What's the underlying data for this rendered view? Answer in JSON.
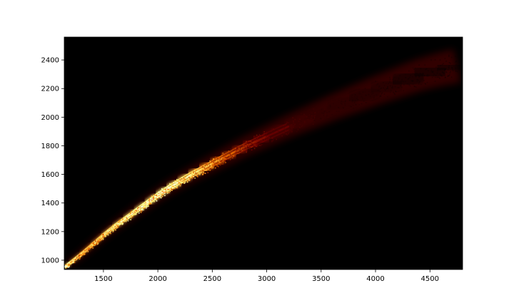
{
  "chart_data": {
    "type": "heatmap",
    "title": "",
    "xlabel": "",
    "ylabel": "",
    "xlim": [
      1140,
      4800
    ],
    "ylim": [
      935,
      2560
    ],
    "x_ticks": [
      1500,
      2000,
      2500,
      3000,
      3500,
      4000,
      4500
    ],
    "y_ticks": [
      1000,
      1200,
      1400,
      1600,
      1800,
      2000,
      2200,
      2400
    ],
    "grid": false,
    "colormap": "afmhot",
    "background_color": "#000000",
    "density_ridge": [
      {
        "x": 1150,
        "y": 955,
        "intensity": 1.0
      },
      {
        "x": 1200,
        "y": 985,
        "intensity": 0.9
      },
      {
        "x": 1300,
        "y": 1045,
        "intensity": 0.7
      },
      {
        "x": 1400,
        "y": 1110,
        "intensity": 0.75
      },
      {
        "x": 1500,
        "y": 1175,
        "intensity": 0.8
      },
      {
        "x": 1600,
        "y": 1235,
        "intensity": 0.85
      },
      {
        "x": 1700,
        "y": 1290,
        "intensity": 0.9
      },
      {
        "x": 1800,
        "y": 1345,
        "intensity": 0.92
      },
      {
        "x": 1900,
        "y": 1400,
        "intensity": 0.95
      },
      {
        "x": 2000,
        "y": 1455,
        "intensity": 0.97
      },
      {
        "x": 2100,
        "y": 1505,
        "intensity": 0.95
      },
      {
        "x": 2200,
        "y": 1550,
        "intensity": 0.9
      },
      {
        "x": 2300,
        "y": 1595,
        "intensity": 0.85
      },
      {
        "x": 2400,
        "y": 1635,
        "intensity": 0.75
      },
      {
        "x": 2500,
        "y": 1675,
        "intensity": 0.65
      },
      {
        "x": 2600,
        "y": 1715,
        "intensity": 0.55
      },
      {
        "x": 2700,
        "y": 1755,
        "intensity": 0.45
      },
      {
        "x": 2800,
        "y": 1795,
        "intensity": 0.38
      },
      {
        "x": 2900,
        "y": 1830,
        "intensity": 0.32
      },
      {
        "x": 3000,
        "y": 1865,
        "intensity": 0.27
      },
      {
        "x": 3200,
        "y": 1935,
        "intensity": 0.2
      },
      {
        "x": 3400,
        "y": 2000,
        "intensity": 0.15
      },
      {
        "x": 3600,
        "y": 2065,
        "intensity": 0.11
      },
      {
        "x": 3800,
        "y": 2125,
        "intensity": 0.08
      },
      {
        "x": 4000,
        "y": 2185,
        "intensity": 0.06
      },
      {
        "x": 4200,
        "y": 2240,
        "intensity": 0.045
      },
      {
        "x": 4400,
        "y": 2295,
        "intensity": 0.035
      },
      {
        "x": 4600,
        "y": 2335,
        "intensity": 0.025
      },
      {
        "x": 4750,
        "y": 2360,
        "intensity": 0.015
      }
    ]
  }
}
